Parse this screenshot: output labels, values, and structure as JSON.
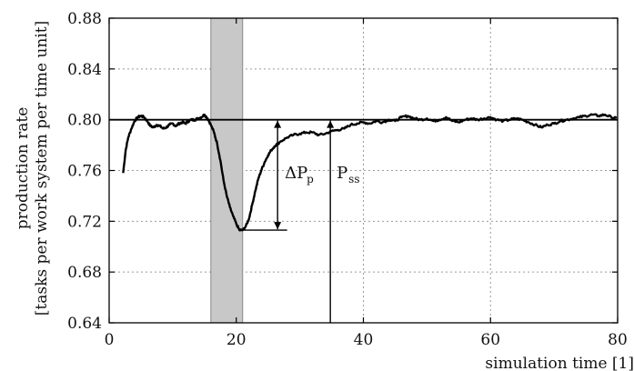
{
  "chart_data": {
    "type": "line",
    "xlabel": "simulation  time [1]",
    "ylabel_line1": "production rate",
    "ylabel_line2": "[tasks per work system per time unit]",
    "xlim": [
      0,
      80
    ],
    "ylim": [
      0.64,
      0.88
    ],
    "x_ticks": [
      0,
      20,
      40,
      60,
      80
    ],
    "y_ticks": [
      "0.64",
      "0.68",
      "0.72",
      "0.76",
      "0.80",
      "0.84",
      "0.88"
    ],
    "grid": true,
    "reference_line": 0.8,
    "shaded_band": [
      16,
      21
    ],
    "series": [
      {
        "x": [
          2.2,
          2.6,
          3.0,
          3.5,
          4.0,
          4.5,
          5.0,
          5.5,
          6.0,
          6.5,
          7.0,
          7.5,
          8.0,
          8.5,
          9.0,
          9.5,
          10.0,
          10.5,
          11.0,
          11.5,
          12.0,
          12.5,
          13.0,
          13.5,
          14.0,
          14.5,
          15.0,
          15.5,
          16.0,
          16.5,
          17.0,
          17.5,
          18.0,
          18.5,
          19.0,
          19.5,
          20.0,
          20.5,
          21.0,
          21.5,
          22.0,
          22.5,
          23.0,
          23.5,
          24.0,
          24.5,
          25.0,
          25.5,
          26.0,
          27.0,
          28.0,
          29.0,
          30.0,
          31.0,
          32.0,
          33.0,
          34.0,
          35.0,
          36.0,
          37.0,
          38.0,
          39.0,
          40.0,
          41.0,
          42.0,
          43.0,
          44.0,
          45.0,
          46.0,
          47.0,
          48.0,
          49.0,
          50.0,
          51.0,
          52.0,
          53.0,
          54.0,
          55.0,
          56.0,
          57.0,
          58.0,
          59.0,
          60.0,
          61.0,
          62.0,
          63.0,
          64.0,
          65.0,
          66.0,
          67.0,
          68.0,
          69.0,
          70.0,
          71.0,
          72.0,
          73.0,
          74.0,
          75.0,
          76.0,
          77.0,
          78.0,
          79.0,
          79.8
        ],
        "y": [
          0.758,
          0.776,
          0.786,
          0.793,
          0.799,
          0.802,
          0.803,
          0.802,
          0.799,
          0.795,
          0.794,
          0.796,
          0.795,
          0.793,
          0.794,
          0.796,
          0.797,
          0.795,
          0.797,
          0.798,
          0.797,
          0.799,
          0.8,
          0.8,
          0.801,
          0.802,
          0.804,
          0.801,
          0.796,
          0.79,
          0.781,
          0.768,
          0.752,
          0.74,
          0.731,
          0.724,
          0.718,
          0.713,
          0.713,
          0.716,
          0.722,
          0.733,
          0.744,
          0.754,
          0.761,
          0.767,
          0.772,
          0.776,
          0.779,
          0.783,
          0.786,
          0.788,
          0.789,
          0.79,
          0.79,
          0.788,
          0.789,
          0.791,
          0.792,
          0.793,
          0.796,
          0.797,
          0.798,
          0.797,
          0.799,
          0.798,
          0.8,
          0.799,
          0.802,
          0.803,
          0.801,
          0.8,
          0.801,
          0.799,
          0.8,
          0.802,
          0.799,
          0.798,
          0.8,
          0.801,
          0.8,
          0.801,
          0.802,
          0.8,
          0.799,
          0.8,
          0.801,
          0.8,
          0.798,
          0.796,
          0.794,
          0.796,
          0.797,
          0.799,
          0.8,
          0.801,
          0.802,
          0.803,
          0.804,
          0.803,
          0.804,
          0.802,
          0.801
        ]
      }
    ],
    "annotations": {
      "delta_pp": {
        "symbol": "ΔP",
        "sub": "p",
        "x": 26.5,
        "y_from": 0.713,
        "y_to": 0.8,
        "bottom_tick_to_x": 28
      },
      "p_ss": {
        "symbol": "P",
        "sub": "ss",
        "x": 34.8,
        "y_from": 0.64,
        "y_to": 0.8
      }
    }
  }
}
